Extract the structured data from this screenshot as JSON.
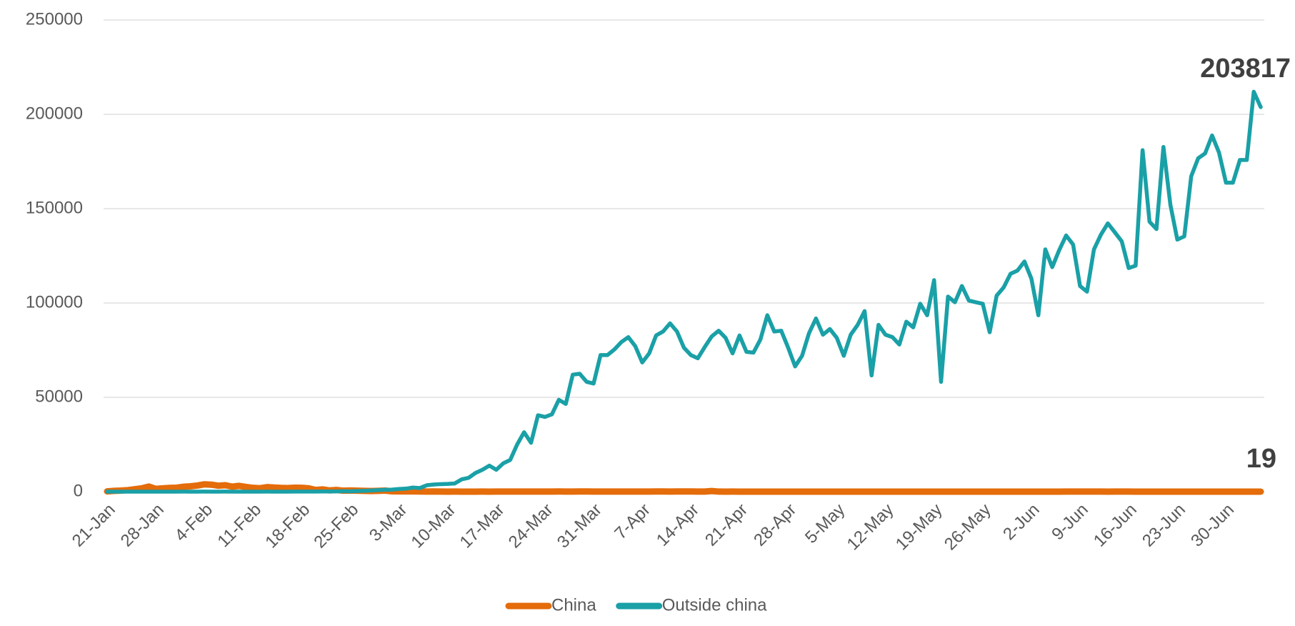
{
  "chart_data": {
    "type": "line",
    "categories": [
      "21-Jan",
      null,
      null,
      null,
      null,
      null,
      null,
      "28-Jan",
      null,
      null,
      null,
      null,
      null,
      null,
      "4-Feb",
      null,
      null,
      null,
      null,
      null,
      null,
      "11-Feb",
      null,
      null,
      null,
      null,
      null,
      null,
      "18-Feb",
      null,
      null,
      null,
      null,
      null,
      null,
      "25-Feb",
      null,
      null,
      null,
      null,
      null,
      null,
      "3-Mar",
      null,
      null,
      null,
      null,
      null,
      null,
      "10-Mar",
      null,
      null,
      null,
      null,
      null,
      null,
      "17-Mar",
      null,
      null,
      null,
      null,
      null,
      null,
      "24-Mar",
      null,
      null,
      null,
      null,
      null,
      null,
      "31-Mar",
      null,
      null,
      null,
      null,
      null,
      null,
      "7-Apr",
      null,
      null,
      null,
      null,
      null,
      null,
      "14-Apr",
      null,
      null,
      null,
      null,
      null,
      null,
      "21-Apr",
      null,
      null,
      null,
      null,
      null,
      null,
      "28-Apr",
      null,
      null,
      null,
      null,
      null,
      null,
      "5-May",
      null,
      null,
      null,
      null,
      null,
      null,
      "12-May",
      null,
      null,
      null,
      null,
      null,
      null,
      "19-May",
      null,
      null,
      null,
      null,
      null,
      null,
      "26-May",
      null,
      null,
      null,
      null,
      null,
      null,
      "2-Jun",
      null,
      null,
      null,
      null,
      null,
      null,
      "9-Jun",
      null,
      null,
      null,
      null,
      null,
      null,
      "16-Jun",
      null,
      null,
      null,
      null,
      null,
      null,
      "23-Jun",
      null,
      null,
      null,
      null,
      null,
      null,
      "30-Jun",
      null,
      null,
      null,
      null,
      null
    ],
    "series": [
      {
        "name": "China",
        "color": "#e46c0a",
        "values": [
          150,
          440,
          570,
          830,
          1300,
          1750,
          2700,
          1460,
          1740,
          1980,
          2100,
          2590,
          2830,
          3240,
          3890,
          3700,
          3150,
          3400,
          2650,
          3070,
          2480,
          2020,
          1820,
          2400,
          2200,
          2000,
          1900,
          2100,
          2050,
          1750,
          900,
          1200,
          650,
          900,
          500,
          600,
          500,
          430,
          330,
          430,
          570,
          200,
          120,
          140,
          140,
          100,
          45,
          100,
          40,
          20,
          30,
          15,
          10,
          20,
          25,
          15,
          40,
          35,
          40,
          45,
          45,
          40,
          50,
          70,
          60,
          80,
          55,
          45,
          80,
          90,
          50,
          35,
          30,
          40,
          50,
          30,
          60,
          40,
          60,
          100,
          90,
          45,
          100,
          90,
          110,
          50,
          30,
          350,
          25,
          20,
          30,
          15,
          10,
          20,
          10,
          20,
          5,
          10,
          5,
          5,
          5,
          3,
          2,
          1,
          4,
          5,
          15,
          10,
          5,
          2,
          14,
          17,
          10,
          7,
          8,
          6,
          5,
          10,
          5,
          8,
          6,
          6,
          3,
          4,
          10,
          3,
          11,
          4,
          6,
          2,
          5,
          7,
          3,
          5,
          10,
          6,
          3,
          2,
          45,
          57,
          40,
          30,
          25,
          28,
          22,
          27,
          25,
          30,
          17,
          13,
          15,
          12,
          21,
          20,
          10,
          14,
          13,
          6,
          14,
          10,
          6,
          4,
          7,
          10,
          7,
          12,
          19
        ]
      },
      {
        "name": "Outside china",
        "color": "#1aa0a7",
        "values": [
          1,
          1,
          3,
          5,
          7,
          4,
          13,
          8,
          14,
          12,
          9,
          30,
          16,
          20,
          25,
          14,
          22,
          30,
          20,
          16,
          15,
          20,
          15,
          40,
          5,
          20,
          15,
          45,
          30,
          25,
          50,
          100,
          95,
          150,
          220,
          210,
          330,
          420,
          600,
          820,
          1000,
          1100,
          1400,
          1600,
          2200,
          1900,
          3400,
          3800,
          4000,
          4100,
          4300,
          6500,
          7300,
          9900,
          11600,
          13800,
          11600,
          15000,
          16800,
          25000,
          31500,
          25900,
          40500,
          39600,
          41000,
          48700,
          46500,
          62000,
          62500,
          58200,
          57300,
          72400,
          72400,
          75400,
          79300,
          81900,
          77100,
          68500,
          73300,
          82800,
          84900,
          89200,
          84900,
          76300,
          72400,
          70700,
          76700,
          82300,
          85300,
          81500,
          73300,
          82800,
          74100,
          73700,
          80600,
          93500,
          84900,
          85300,
          76300,
          66400,
          72000,
          84000,
          91800,
          83200,
          86200,
          81500,
          72000,
          83200,
          88400,
          95700,
          61600,
          88400,
          83200,
          81900,
          78000,
          90100,
          87100,
          99600,
          93500,
          112100,
          58200,
          103400,
          100400,
          109000,
          101300,
          100400,
          99600,
          84500,
          103900,
          108200,
          115500,
          117200,
          122000,
          112900,
          93500,
          128400,
          119000,
          128000,
          135800,
          131000,
          109000,
          106000,
          128400,
          136200,
          142200,
          137500,
          132700,
          118500,
          119800,
          181000,
          143100,
          139200,
          182700,
          152100,
          133600,
          135300,
          167200,
          176700,
          179300,
          188800,
          179700,
          163800,
          163800,
          175800,
          175800,
          212000,
          203817
        ]
      }
    ],
    "ylim": [
      0,
      250000
    ],
    "yticks": [
      0,
      50000,
      100000,
      150000,
      200000,
      250000
    ],
    "grid": true,
    "legend": "bottom"
  }
}
